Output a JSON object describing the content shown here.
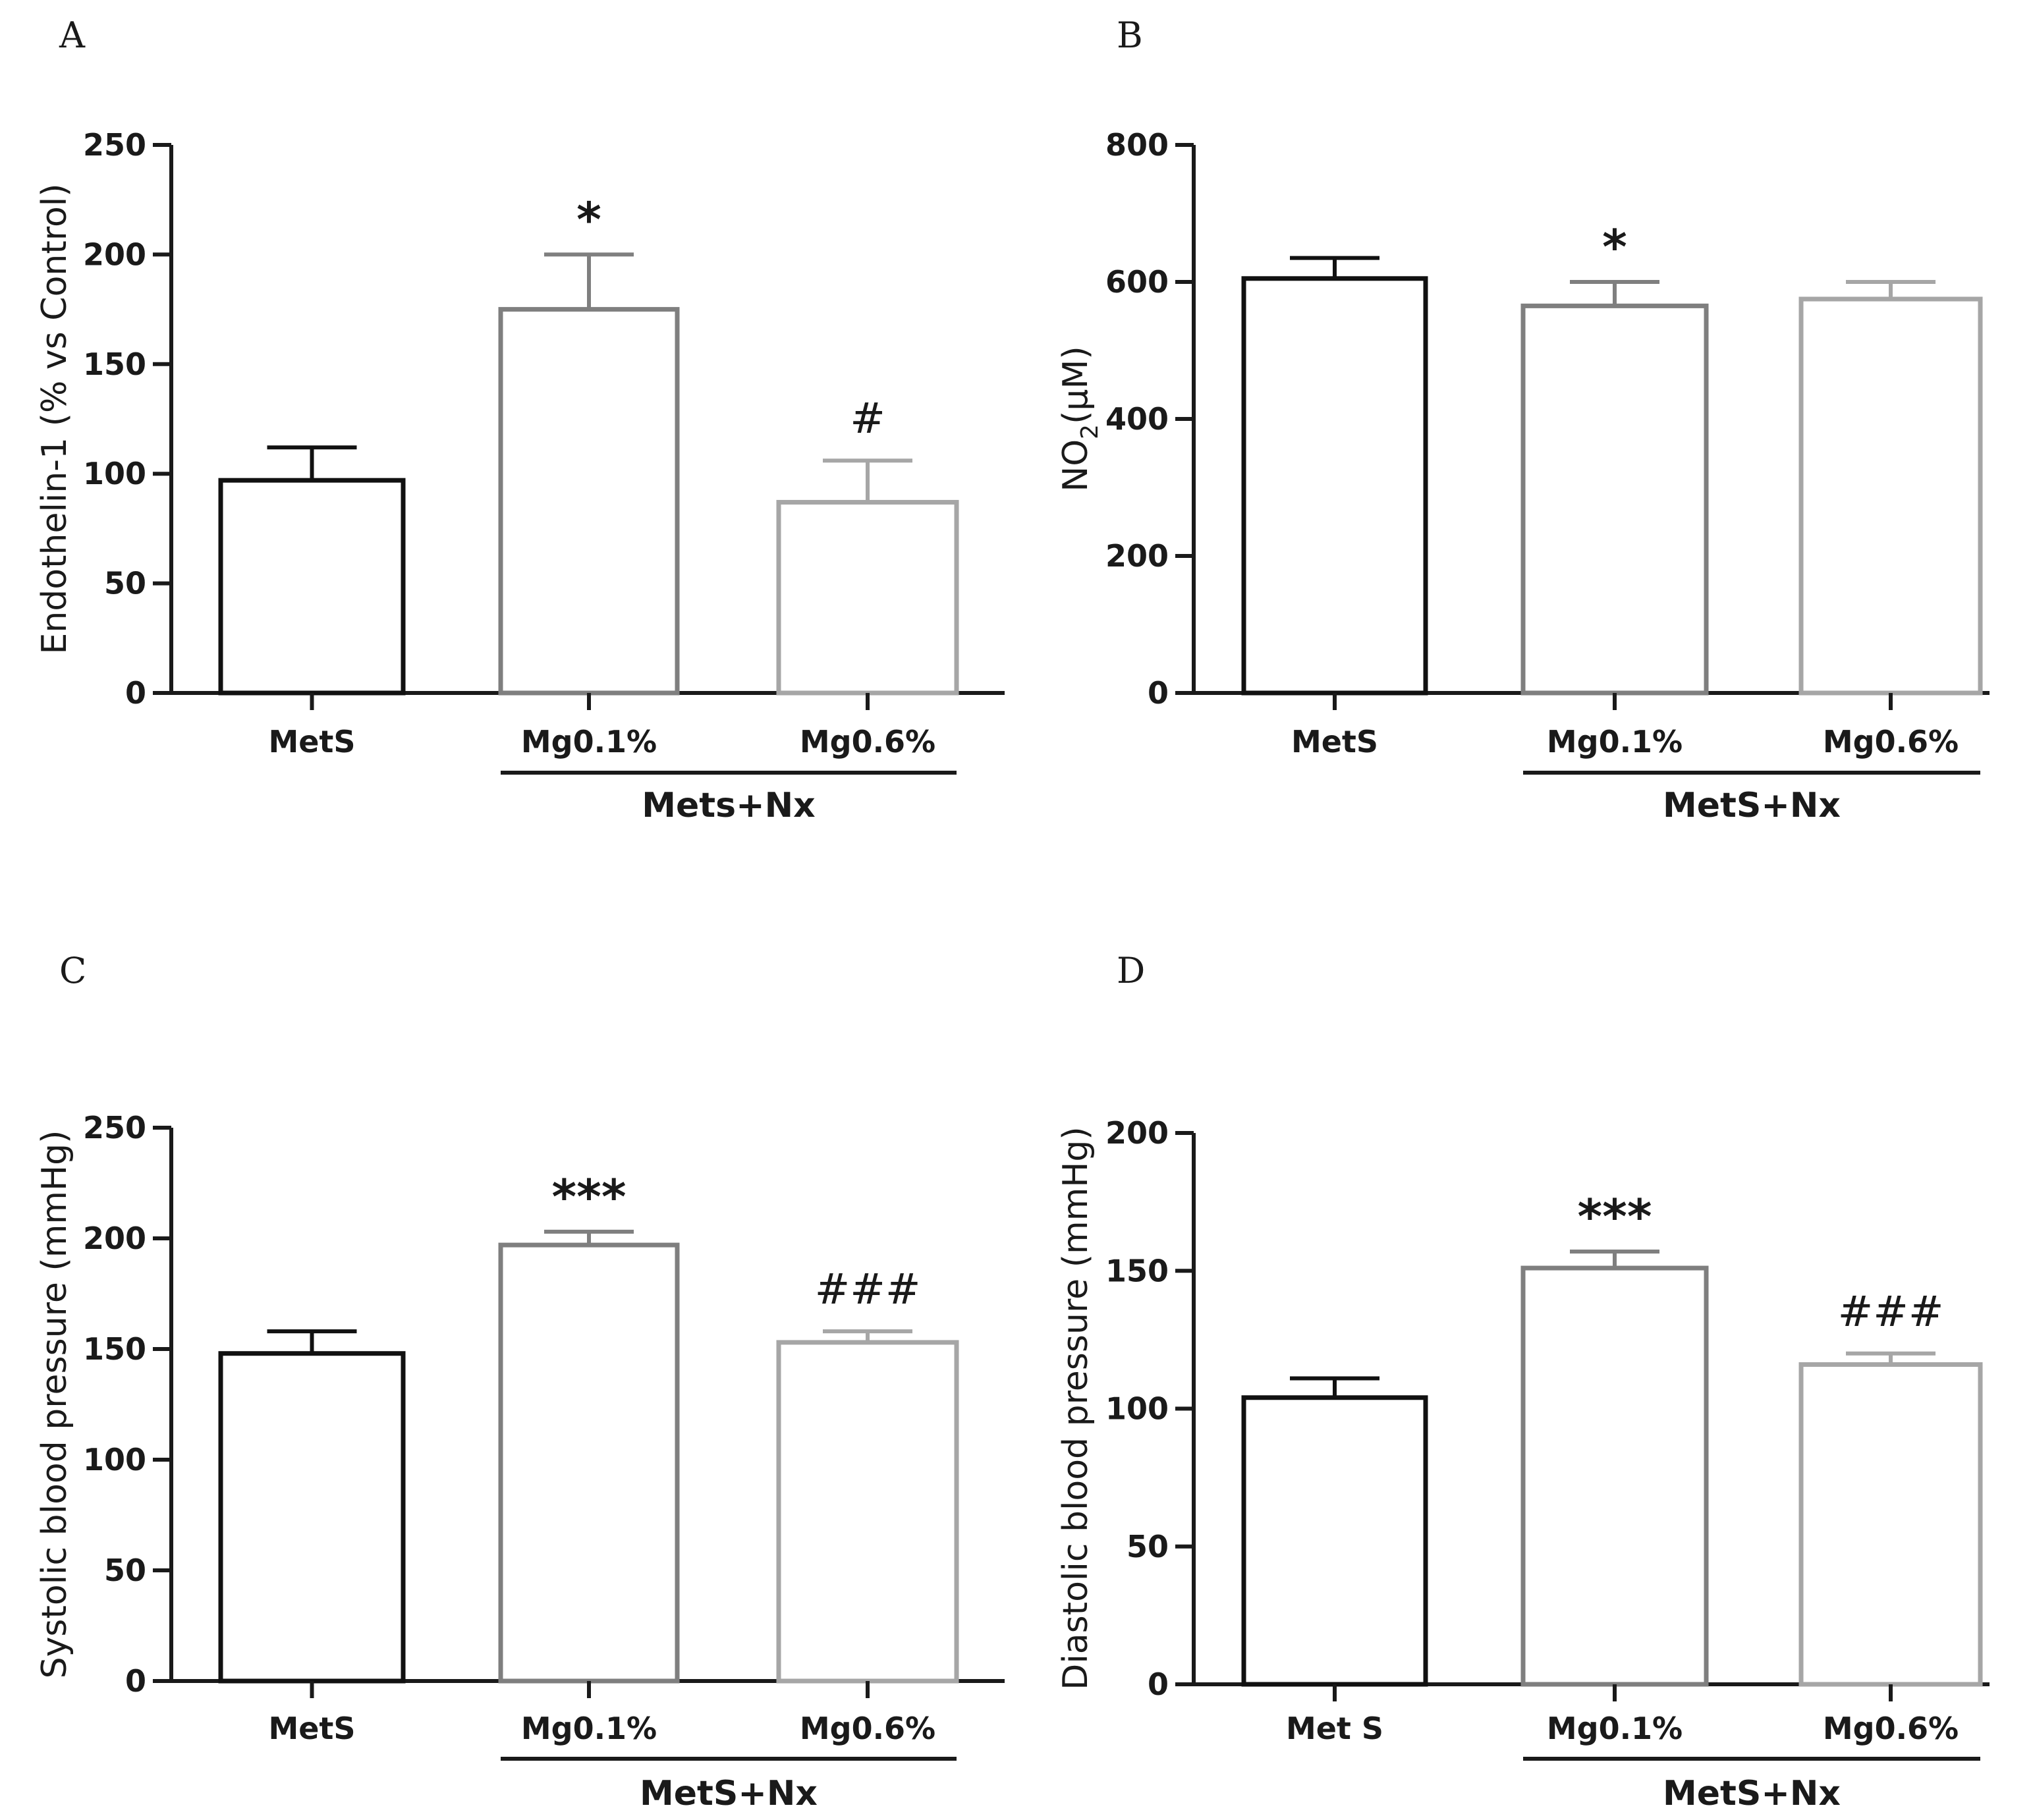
{
  "colors": {
    "axis": "#1a1a1a",
    "series": [
      "#111111",
      "#7f7f7f",
      "#a6a6a6"
    ]
  },
  "chart_data": [
    {
      "panel": "A",
      "type": "bar",
      "categories": [
        "MetS",
        "Mg0.1%",
        "Mg0.6%"
      ],
      "values": [
        97,
        175,
        87
      ],
      "errors": [
        15,
        25,
        19
      ],
      "ylabel": "Endothelin-1 (% vs Control)",
      "ylim": [
        0,
        250
      ],
      "yticks": [
        0,
        50,
        100,
        150,
        200,
        250
      ],
      "group_label": "Mets+Nx",
      "annotations": [
        "",
        "*",
        "#"
      ],
      "grid": false
    },
    {
      "panel": "B",
      "type": "bar",
      "categories": [
        "MetS",
        "Mg0.1%",
        "Mg0.6%"
      ],
      "values": [
        605,
        565,
        575
      ],
      "errors": [
        30,
        35,
        25
      ],
      "ylabel": "NO",
      "ylabel_sub": "2",
      "ylabel_tail": "(µM)",
      "ylim": [
        0,
        800
      ],
      "yticks": [
        0,
        200,
        400,
        600,
        800
      ],
      "group_label": "MetS+Nx",
      "annotations": [
        "",
        "*",
        ""
      ],
      "grid": false
    },
    {
      "panel": "C",
      "type": "bar",
      "categories": [
        "MetS",
        "Mg0.1%",
        "Mg0.6%"
      ],
      "values": [
        148,
        197,
        153
      ],
      "errors": [
        10,
        6,
        5
      ],
      "ylabel": "Systolic blood pressure (mmHg)",
      "ylim": [
        0,
        250
      ],
      "yticks": [
        0,
        50,
        100,
        150,
        200,
        250
      ],
      "group_label": "MetS+Nx",
      "annotations": [
        "",
        "***",
        "###"
      ],
      "grid": false
    },
    {
      "panel": "D",
      "type": "bar",
      "categories": [
        "Met S",
        "Mg0.1%",
        "Mg0.6%"
      ],
      "values": [
        104,
        151,
        116
      ],
      "errors": [
        7,
        6,
        4
      ],
      "ylabel": "Diastolic blood pressure (mmHg)",
      "ylim": [
        0,
        200
      ],
      "yticks": [
        0,
        50,
        100,
        150,
        200
      ],
      "group_label": "MetS+Nx",
      "annotations": [
        "",
        "***",
        "###"
      ],
      "grid": false
    }
  ]
}
